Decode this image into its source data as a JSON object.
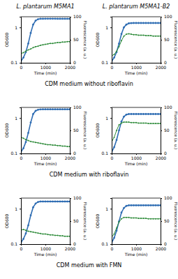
{
  "figure": {
    "column_titles": [
      "L. plantarum M5MA1",
      "L. plantarum M5MA1-B2"
    ],
    "row_captions": [
      "CDM medium without riboflavin",
      "CDM medium with riboflavin",
      "CDM medium with FMN"
    ]
  },
  "chart_data": [
    {
      "type": "line",
      "x_label": "Time (min)",
      "y_label": "OD600",
      "y2_label": "Fluorescence (a. u.)",
      "x": [
        0,
        100,
        200,
        300,
        400,
        500,
        600,
        700,
        800,
        900,
        1000,
        1100,
        1200,
        1300,
        1400,
        1500,
        1600,
        1700,
        1800,
        1900,
        2000
      ],
      "xlim": [
        0,
        2000
      ],
      "xticks": [
        0,
        1000,
        2000
      ],
      "log": "y",
      "ylim": [
        0.1,
        2
      ],
      "yticks": [
        0.1,
        1
      ],
      "y2lim": [
        0,
        100
      ],
      "y2ticks": [
        0,
        50,
        100
      ],
      "series": [
        {
          "color": "#2f6db3",
          "marker": "circle",
          "values": [
            0.11,
            0.14,
            0.2,
            0.35,
            0.7,
            1.2,
            1.55,
            1.7,
            1.75,
            1.75,
            1.76,
            1.76,
            1.76,
            1.76,
            1.76,
            1.75,
            1.75,
            1.75,
            1.75,
            1.75,
            1.75
          ]
        },
        {
          "color": "#2e8b3a",
          "marker": "circle",
          "axis": "y2",
          "values": [
            20,
            22,
            25,
            28,
            30,
            33,
            35,
            36,
            38,
            39,
            40,
            41,
            42,
            42,
            43,
            44,
            44,
            45,
            45,
            46,
            46
          ]
        }
      ]
    },
    {
      "type": "line",
      "x_label": "Time (min)",
      "y_label": "OD600",
      "y2_label": "Fluorescence (a. u.)",
      "x": [
        0,
        100,
        200,
        300,
        400,
        500,
        600,
        700,
        800,
        900,
        1000,
        1100,
        1200,
        1300,
        1400,
        1500,
        1600,
        1700,
        1800,
        1900,
        2000
      ],
      "xlim": [
        0,
        2000
      ],
      "xticks": [
        0,
        1000,
        2000
      ],
      "log": "y",
      "ylim": [
        0.1,
        2
      ],
      "yticks": [
        0.1,
        1
      ],
      "y2lim": [
        0,
        100
      ],
      "y2ticks": [
        0,
        50,
        100
      ],
      "series": [
        {
          "color": "#2f6db3",
          "marker": "circle",
          "values": [
            0.11,
            0.14,
            0.2,
            0.35,
            0.65,
            1.0,
            1.2,
            1.3,
            1.32,
            1.33,
            1.33,
            1.33,
            1.33,
            1.33,
            1.33,
            1.33,
            1.33,
            1.33,
            1.33,
            1.33,
            1.33
          ]
        },
        {
          "color": "#2e8b3a",
          "marker": "circle",
          "axis": "y2",
          "values": [
            15,
            18,
            25,
            35,
            48,
            58,
            62,
            63,
            62,
            61,
            61,
            60,
            60,
            60,
            59,
            59,
            59,
            58,
            58,
            58,
            58
          ]
        }
      ]
    },
    {
      "type": "line",
      "x_label": "Time (min)",
      "y_label": "OD600",
      "y2_label": "Fluorescence (a. u.)",
      "x": [
        0,
        100,
        200,
        300,
        400,
        500,
        600,
        700,
        800,
        900,
        1000,
        1100,
        1200,
        1300,
        1400,
        1500,
        1600,
        1700,
        1800,
        1900,
        2000
      ],
      "xlim": [
        0,
        2000
      ],
      "xticks": [
        0,
        1000,
        2000
      ],
      "log": "y",
      "ylim": [
        0.1,
        2
      ],
      "yticks": [
        0.1,
        1
      ],
      "y2lim": [
        0,
        100
      ],
      "y2ticks": [
        0,
        50,
        100
      ],
      "series": [
        {
          "color": "#2f6db3",
          "marker": "circle",
          "values": [
            0.11,
            0.14,
            0.21,
            0.38,
            0.75,
            1.3,
            1.6,
            1.72,
            1.76,
            1.77,
            1.77,
            1.77,
            1.77,
            1.77,
            1.77,
            1.77,
            1.77,
            1.77,
            1.77,
            1.77,
            1.77
          ]
        },
        {
          "color": "#2e8b3a",
          "marker": "circle",
          "axis": "y2",
          "values": [
            35,
            33,
            30,
            28,
            26,
            25,
            24,
            23,
            22,
            21,
            20,
            19,
            19,
            18,
            18,
            17,
            17,
            16,
            16,
            15,
            15
          ]
        }
      ]
    },
    {
      "type": "line",
      "x_label": "Time (min)",
      "y_label": "OD600",
      "y2_label": "Fluorescence (a. u.)",
      "x": [
        0,
        100,
        200,
        300,
        400,
        500,
        600,
        700,
        800,
        900,
        1000,
        1100,
        1200,
        1300,
        1400,
        1500,
        1600,
        1700,
        1800,
        1900,
        2000
      ],
      "xlim": [
        0,
        2000
      ],
      "xticks": [
        0,
        1000,
        2000
      ],
      "log": "y",
      "ylim": [
        0.1,
        2
      ],
      "yticks": [
        0.1,
        1
      ],
      "y2lim": [
        0,
        100
      ],
      "y2ticks": [
        0,
        50,
        100
      ],
      "series": [
        {
          "color": "#2f6db3",
          "marker": "circle",
          "values": [
            0.11,
            0.15,
            0.24,
            0.45,
            0.8,
            1.1,
            1.25,
            1.3,
            1.3,
            1.3,
            1.3,
            1.3,
            1.3,
            1.3,
            1.3,
            1.3,
            1.3,
            1.3,
            1.3,
            1.3,
            1.3
          ]
        },
        {
          "color": "#2e8b3a",
          "marker": "circle",
          "axis": "y2",
          "values": [
            25,
            35,
            50,
            62,
            66,
            68,
            68,
            68,
            67,
            67,
            67,
            66,
            66,
            66,
            66,
            65,
            65,
            65,
            65,
            65,
            65
          ]
        }
      ]
    },
    {
      "type": "line",
      "x_label": "Time (min)",
      "y_label": "OD600",
      "y2_label": "Fluorescence (a. u.)",
      "x": [
        0,
        100,
        200,
        300,
        400,
        500,
        600,
        700,
        800,
        900,
        1000,
        1100,
        1200,
        1300,
        1400,
        1500,
        1600,
        1700,
        1800,
        1900,
        2000
      ],
      "xlim": [
        0,
        2000
      ],
      "xticks": [
        0,
        1000,
        2000
      ],
      "log": "y",
      "ylim": [
        0.1,
        2
      ],
      "yticks": [
        0.1,
        1
      ],
      "y2lim": [
        0,
        100
      ],
      "y2ticks": [
        0,
        50,
        100
      ],
      "series": [
        {
          "color": "#2f6db3",
          "marker": "circle",
          "values": [
            0.11,
            0.14,
            0.2,
            0.34,
            0.65,
            1.1,
            1.4,
            1.55,
            1.6,
            1.6,
            1.6,
            1.6,
            1.6,
            1.6,
            1.6,
            1.6,
            1.6,
            1.6,
            1.6,
            1.6,
            1.6
          ]
        },
        {
          "color": "#2e8b3a",
          "marker": "circle",
          "axis": "y2",
          "values": [
            30,
            32,
            30,
            28,
            27,
            26,
            25,
            24,
            23,
            22,
            22,
            21,
            20,
            20,
            19,
            19,
            18,
            18,
            17,
            17,
            17
          ]
        }
      ]
    },
    {
      "type": "line",
      "x_label": "Time (min)",
      "y_label": "OD600",
      "y2_label": "Fluorescence (a. u.)",
      "x": [
        0,
        100,
        200,
        300,
        400,
        500,
        600,
        700,
        800,
        900,
        1000,
        1100,
        1200,
        1300,
        1400,
        1500,
        1600,
        1700,
        1800,
        1900,
        2000
      ],
      "xlim": [
        0,
        2000
      ],
      "xticks": [
        0,
        1000,
        2000
      ],
      "log": "y",
      "ylim": [
        0.1,
        2
      ],
      "yticks": [
        0.1,
        1
      ],
      "y2lim": [
        0,
        100
      ],
      "y2ticks": [
        0,
        50,
        100
      ],
      "series": [
        {
          "color": "#2f6db3",
          "marker": "circle",
          "values": [
            0.11,
            0.15,
            0.24,
            0.44,
            0.78,
            1.05,
            1.2,
            1.25,
            1.25,
            1.25,
            1.25,
            1.25,
            1.25,
            1.25,
            1.25,
            1.25,
            1.25,
            1.25,
            1.25,
            1.25,
            1.25
          ]
        },
        {
          "color": "#2e8b3a",
          "marker": "circle",
          "axis": "y2",
          "values": [
            15,
            22,
            35,
            48,
            55,
            58,
            58,
            58,
            57,
            57,
            57,
            56,
            56,
            56,
            56,
            55,
            55,
            55,
            55,
            55,
            55
          ]
        }
      ]
    }
  ]
}
